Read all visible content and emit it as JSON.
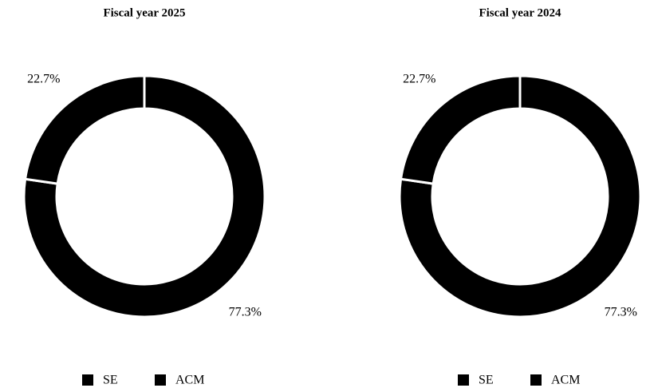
{
  "chart_data": [
    {
      "type": "pie",
      "title": "Fiscal year 2025",
      "categories": [
        "SE",
        "ACM"
      ],
      "values": [
        77.3,
        22.7
      ],
      "value_labels": [
        "77.3%",
        "22.7%"
      ],
      "colors": [
        "#000000",
        "#000000"
      ],
      "legend": "bottom"
    },
    {
      "type": "pie",
      "title": "Fiscal year 2024",
      "categories": [
        "SE",
        "ACM"
      ],
      "values": [
        77.3,
        22.7
      ],
      "value_labels": [
        "77.3%",
        "22.7%"
      ],
      "colors": [
        "#000000",
        "#000000"
      ],
      "legend": "bottom"
    }
  ]
}
